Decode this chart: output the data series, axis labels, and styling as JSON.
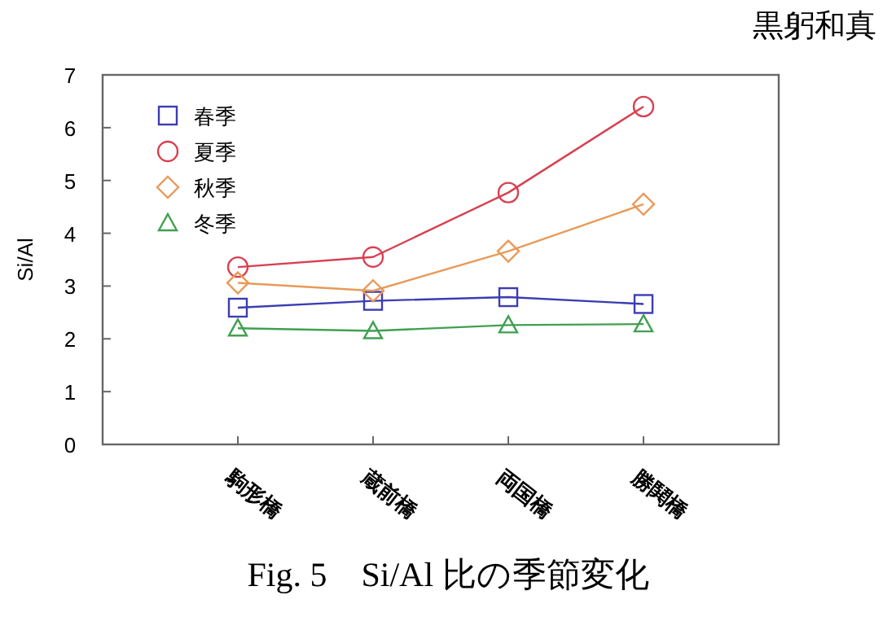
{
  "chart_data": {
    "type": "line",
    "ylabel": "Si/Al",
    "categories": [
      "駒形橋",
      "蔵前橋",
      "両国橋",
      "勝鬨橋"
    ],
    "series": [
      {
        "name": "春季",
        "color": "#3c3cb4",
        "marker": "square",
        "values": [
          2.59,
          2.72,
          2.79,
          2.66
        ]
      },
      {
        "name": "夏季",
        "color": "#d84050",
        "marker": "circle",
        "values": [
          3.36,
          3.55,
          4.77,
          6.4
        ]
      },
      {
        "name": "秋季",
        "color": "#e89a58",
        "marker": "diamond",
        "values": [
          3.06,
          2.91,
          3.66,
          4.55
        ]
      },
      {
        "name": "冬季",
        "color": "#40a050",
        "marker": "triangle",
        "values": [
          2.2,
          2.15,
          2.26,
          2.28
        ]
      }
    ],
    "ylim": [
      0,
      7
    ],
    "yticks": [
      0,
      1,
      2,
      3,
      4,
      5,
      6,
      7
    ],
    "grid": false,
    "legend": "top left",
    "annotations": [
      "Fig. 5　Si/Al 比の季節変化",
      "黒躬和真"
    ]
  }
}
